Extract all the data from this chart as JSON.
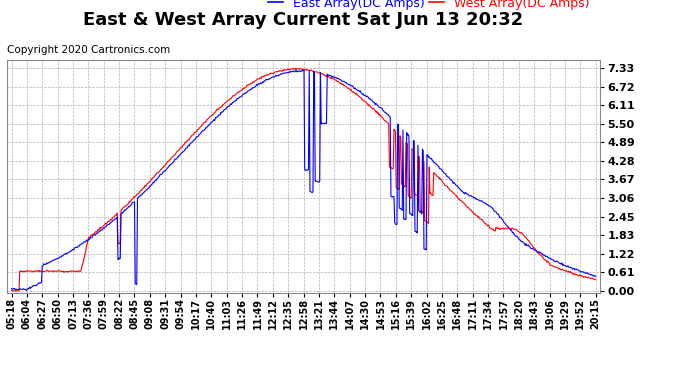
{
  "title": "East & West Array Current Sat Jun 13 20:32",
  "copyright": "Copyright 2020 Cartronics.com",
  "legend_east": "East Array(DC Amps)",
  "legend_west": "West Array(DC Amps)",
  "east_color": "#0000FF",
  "west_color": "#FF0000",
  "bg_color": "#FFFFFF",
  "plot_bg_color": "#FFFFFF",
  "grid_color": "#AAAAAA",
  "yticks": [
    0.0,
    0.61,
    1.22,
    1.83,
    2.45,
    3.06,
    3.67,
    4.28,
    4.89,
    5.5,
    6.11,
    6.72,
    7.33
  ],
  "ylim": [
    -0.05,
    7.6
  ],
  "xtick_labels": [
    "05:18",
    "06:04",
    "06:27",
    "06:50",
    "07:13",
    "07:36",
    "07:59",
    "08:22",
    "08:45",
    "09:08",
    "09:31",
    "09:54",
    "10:17",
    "10:40",
    "11:03",
    "11:26",
    "11:49",
    "12:12",
    "12:35",
    "12:58",
    "13:21",
    "13:44",
    "14:07",
    "14:30",
    "14:53",
    "15:16",
    "15:39",
    "16:02",
    "16:25",
    "16:48",
    "17:11",
    "17:34",
    "17:57",
    "18:20",
    "18:43",
    "19:06",
    "19:29",
    "19:52",
    "20:15"
  ],
  "title_fontsize": 13,
  "axis_fontsize": 8,
  "copyright_fontsize": 7.5,
  "legend_fontsize": 9
}
